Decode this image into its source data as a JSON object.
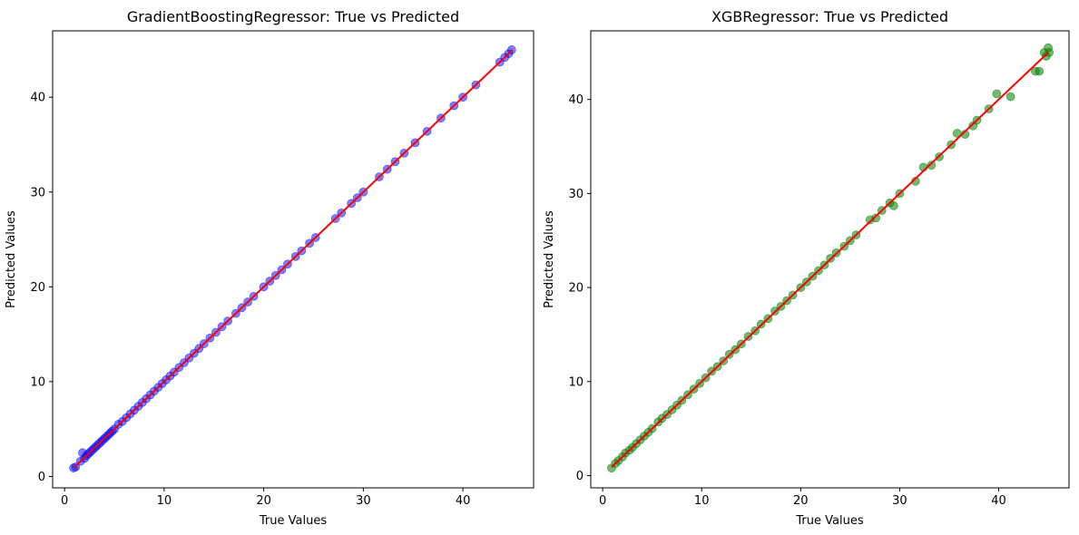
{
  "chart_data": [
    {
      "type": "scatter",
      "title": "GradientBoostingRegressor: True vs Predicted",
      "xlabel": "True Values",
      "ylabel": "Predicted Values",
      "xlim": [
        -1.2,
        47.1
      ],
      "ylim": [
        -1.2,
        47.0
      ],
      "xticks": [
        0,
        10,
        20,
        30,
        40
      ],
      "yticks": [
        0,
        10,
        20,
        30,
        40
      ],
      "grid": false,
      "point_color": "#0000ff",
      "point_alpha": 0.5,
      "line_color": "#ff0000",
      "reference_line": {
        "x": [
          0.9,
          45.0
        ],
        "y": [
          0.9,
          45.0
        ]
      },
      "series": [
        {
          "points": [
            [
              0.9,
              0.9
            ],
            [
              1.1,
              1.0
            ],
            [
              1.6,
              1.6
            ],
            [
              1.8,
              2.5
            ],
            [
              2.0,
              1.9
            ],
            [
              2.2,
              2.2
            ],
            [
              2.4,
              2.4
            ],
            [
              2.6,
              2.6
            ],
            [
              2.8,
              2.8
            ],
            [
              3.0,
              3.0
            ],
            [
              3.2,
              3.2
            ],
            [
              3.4,
              3.4
            ],
            [
              3.6,
              3.6
            ],
            [
              3.8,
              3.8
            ],
            [
              4.0,
              4.0
            ],
            [
              4.2,
              4.2
            ],
            [
              4.4,
              4.4
            ],
            [
              4.6,
              4.6
            ],
            [
              4.8,
              4.8
            ],
            [
              5.0,
              5.0
            ],
            [
              5.4,
              5.5
            ],
            [
              5.8,
              5.8
            ],
            [
              6.2,
              6.2
            ],
            [
              6.6,
              6.6
            ],
            [
              7.0,
              7.0
            ],
            [
              7.4,
              7.4
            ],
            [
              7.8,
              7.8
            ],
            [
              8.2,
              8.2
            ],
            [
              8.6,
              8.6
            ],
            [
              9.0,
              9.0
            ],
            [
              9.4,
              9.4
            ],
            [
              9.8,
              9.8
            ],
            [
              10.2,
              10.2
            ],
            [
              10.6,
              10.6
            ],
            [
              11.0,
              11.0
            ],
            [
              11.5,
              11.5
            ],
            [
              12.0,
              12.0
            ],
            [
              12.5,
              12.5
            ],
            [
              13.0,
              13.0
            ],
            [
              13.5,
              13.5
            ],
            [
              14.0,
              14.0
            ],
            [
              14.6,
              14.6
            ],
            [
              15.2,
              15.2
            ],
            [
              15.8,
              15.8
            ],
            [
              16.4,
              16.4
            ],
            [
              17.2,
              17.2
            ],
            [
              17.8,
              17.8
            ],
            [
              18.4,
              18.4
            ],
            [
              19.0,
              19.0
            ],
            [
              20.0,
              20.0
            ],
            [
              20.6,
              20.6
            ],
            [
              21.2,
              21.2
            ],
            [
              21.8,
              21.8
            ],
            [
              22.4,
              22.4
            ],
            [
              23.2,
              23.2
            ],
            [
              23.8,
              23.8
            ],
            [
              24.6,
              24.6
            ],
            [
              25.2,
              25.2
            ],
            [
              27.2,
              27.2
            ],
            [
              27.8,
              27.8
            ],
            [
              28.8,
              28.8
            ],
            [
              29.4,
              29.4
            ],
            [
              30.0,
              30.0
            ],
            [
              31.6,
              31.6
            ],
            [
              32.4,
              32.4
            ],
            [
              33.2,
              33.2
            ],
            [
              34.1,
              34.1
            ],
            [
              35.2,
              35.2
            ],
            [
              36.4,
              36.4
            ],
            [
              37.8,
              37.8
            ],
            [
              39.1,
              39.1
            ],
            [
              40.0,
              40.0
            ],
            [
              41.3,
              41.3
            ],
            [
              43.7,
              43.7
            ],
            [
              44.2,
              44.2
            ],
            [
              44.6,
              44.6
            ],
            [
              44.9,
              45.0
            ]
          ]
        }
      ]
    },
    {
      "type": "scatter",
      "title": "XGBRegressor: True vs Predicted",
      "xlabel": "True Values",
      "ylabel": "Predicted Values",
      "xlim": [
        -1.2,
        47.1
      ],
      "ylim": [
        -1.3,
        47.3
      ],
      "xticks": [
        0,
        10,
        20,
        30,
        40
      ],
      "yticks": [
        0,
        10,
        20,
        30,
        40
      ],
      "grid": false,
      "point_color": "#008000",
      "point_alpha": 0.55,
      "line_color": "#ff0000",
      "reference_line": {
        "x": [
          0.9,
          45.0
        ],
        "y": [
          0.9,
          45.0
        ]
      },
      "series": [
        {
          "points": [
            [
              0.9,
              0.8
            ],
            [
              1.3,
              1.3
            ],
            [
              1.6,
              1.6
            ],
            [
              2.0,
              2.0
            ],
            [
              2.3,
              2.4
            ],
            [
              2.7,
              2.7
            ],
            [
              3.0,
              3.0
            ],
            [
              3.4,
              3.4
            ],
            [
              3.8,
              3.8
            ],
            [
              4.2,
              4.2
            ],
            [
              4.6,
              4.6
            ],
            [
              5.0,
              5.0
            ],
            [
              5.6,
              5.7
            ],
            [
              6.0,
              6.1
            ],
            [
              6.5,
              6.5
            ],
            [
              7.0,
              7.0
            ],
            [
              7.5,
              7.5
            ],
            [
              8.0,
              8.0
            ],
            [
              8.6,
              8.6
            ],
            [
              9.2,
              9.2
            ],
            [
              9.8,
              9.8
            ],
            [
              10.4,
              10.4
            ],
            [
              11.0,
              11.1
            ],
            [
              11.6,
              11.6
            ],
            [
              12.2,
              12.2
            ],
            [
              12.8,
              12.9
            ],
            [
              13.4,
              13.4
            ],
            [
              14.0,
              14.0
            ],
            [
              14.7,
              14.8
            ],
            [
              15.4,
              15.4
            ],
            [
              16.0,
              16.1
            ],
            [
              16.7,
              16.7
            ],
            [
              17.4,
              17.5
            ],
            [
              18.0,
              18.0
            ],
            [
              18.6,
              18.6
            ],
            [
              19.2,
              19.2
            ],
            [
              20.0,
              20.0
            ],
            [
              20.6,
              20.6
            ],
            [
              21.2,
              21.2
            ],
            [
              21.8,
              21.8
            ],
            [
              22.4,
              22.4
            ],
            [
              23.0,
              23.1
            ],
            [
              23.6,
              23.7
            ],
            [
              24.4,
              24.4
            ],
            [
              25.0,
              25.0
            ],
            [
              25.6,
              25.6
            ],
            [
              27.0,
              27.2
            ],
            [
              27.6,
              27.4
            ],
            [
              28.2,
              28.2
            ],
            [
              29.0,
              29.0
            ],
            [
              29.4,
              28.7
            ],
            [
              30.0,
              30.0
            ],
            [
              31.6,
              31.3
            ],
            [
              32.4,
              32.8
            ],
            [
              33.2,
              33.0
            ],
            [
              34.0,
              33.9
            ],
            [
              35.2,
              35.2
            ],
            [
              35.8,
              36.4
            ],
            [
              36.6,
              36.3
            ],
            [
              37.4,
              37.2
            ],
            [
              37.8,
              37.8
            ],
            [
              39.0,
              39.0
            ],
            [
              39.8,
              40.6
            ],
            [
              41.2,
              40.3
            ],
            [
              43.7,
              43.0
            ],
            [
              44.1,
              43.0
            ],
            [
              44.6,
              45.0
            ],
            [
              44.8,
              44.6
            ],
            [
              45.0,
              45.5
            ],
            [
              45.1,
              45.0
            ]
          ]
        }
      ]
    }
  ]
}
